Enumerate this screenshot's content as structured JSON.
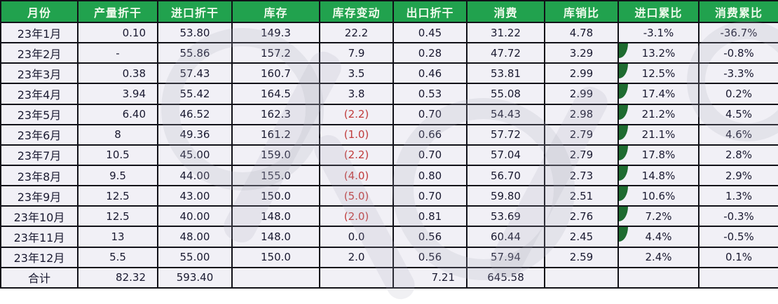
{
  "colors": {
    "header_green": "#21a24e",
    "wedge_green": "#1e6b30",
    "negative_red": "#c03a3a",
    "text": "#191930",
    "cell_bg": "#f1f0f6",
    "border": "#111118"
  },
  "chart_data": {
    "type": "table",
    "columns": [
      "月份",
      "产量折干",
      "进口折干",
      "库存",
      "库存变动",
      "出口折干",
      "消费",
      "库销比",
      "进口累比",
      "消费累比"
    ],
    "rows": [
      {
        "month": "23年1月",
        "values": [
          "0.10",
          "53.80",
          "149.3",
          "22.2",
          "0.45",
          "31.22",
          "4.78",
          "-3.1%",
          "-36.7%"
        ],
        "wedge": false,
        "right_align_cols": [
          0
        ]
      },
      {
        "month": "23年2月",
        "values": [
          "-",
          "55.86",
          "157.2",
          "7.9",
          "0.28",
          "47.72",
          "3.29",
          "13.2%",
          "-0.8%"
        ],
        "wedge": true,
        "right_align_cols": []
      },
      {
        "month": "23年3月",
        "values": [
          "0.38",
          "57.43",
          "160.7",
          "3.5",
          "0.46",
          "53.81",
          "2.99",
          "12.5%",
          "-3.3%"
        ],
        "wedge": true,
        "right_align_cols": [
          0
        ]
      },
      {
        "month": "23年4月",
        "values": [
          "3.94",
          "55.42",
          "164.5",
          "3.8",
          "0.53",
          "55.08",
          "2.99",
          "17.4%",
          "0.2%"
        ],
        "wedge": true,
        "right_align_cols": [
          0
        ]
      },
      {
        "month": "23年5月",
        "values": [
          "6.40",
          "46.52",
          "162.3",
          "(2.2)",
          "0.70",
          "54.43",
          "2.98",
          "21.2%",
          "4.5%"
        ],
        "wedge": true,
        "right_align_cols": [
          0
        ]
      },
      {
        "month": "23年6月",
        "values": [
          "8",
          "49.36",
          "161.2",
          "(1.0)",
          "0.66",
          "57.72",
          "2.79",
          "21.1%",
          "4.6%"
        ],
        "wedge": true,
        "right_align_cols": []
      },
      {
        "month": "23年7月",
        "values": [
          "10.5",
          "45.00",
          "159.0",
          "(2.2)",
          "0.70",
          "57.04",
          "2.79",
          "17.8%",
          "2.8%"
        ],
        "wedge": true,
        "right_align_cols": []
      },
      {
        "month": "23年8月",
        "values": [
          "9.5",
          "44.00",
          "155.0",
          "(4.0)",
          "0.80",
          "56.70",
          "2.73",
          "14.8%",
          "2.9%"
        ],
        "wedge": true,
        "right_align_cols": []
      },
      {
        "month": "23年9月",
        "values": [
          "12.5",
          "43.00",
          "150.0",
          "(5.0)",
          "0.70",
          "59.80",
          "2.51",
          "10.6%",
          "1.3%"
        ],
        "wedge": true,
        "right_align_cols": []
      },
      {
        "month": "23年10月",
        "values": [
          "12.5",
          "40.00",
          "148.0",
          "(2.0)",
          "0.81",
          "53.69",
          "2.76",
          "7.2%",
          "-0.3%"
        ],
        "wedge": true,
        "right_align_cols": []
      },
      {
        "month": "23年11月",
        "values": [
          "13",
          "48.00",
          "148.0",
          "0.0",
          "0.56",
          "60.44",
          "2.45",
          "4.4%",
          "-0.5%"
        ],
        "wedge": true,
        "right_align_cols": []
      },
      {
        "month": "23年12月",
        "values": [
          "5.5",
          "55.00",
          "150.0",
          "2.0",
          "0.56",
          "57.94",
          "2.59",
          "2.4%",
          "0.1%"
        ],
        "wedge": false,
        "right_align_cols": []
      }
    ],
    "total_row": {
      "month": "合计",
      "values": [
        "82.32",
        "593.40",
        "",
        "",
        "7.21",
        "645.58",
        "",
        "",
        ""
      ],
      "wedge": false,
      "right_align_cols": [
        0,
        4
      ]
    }
  }
}
